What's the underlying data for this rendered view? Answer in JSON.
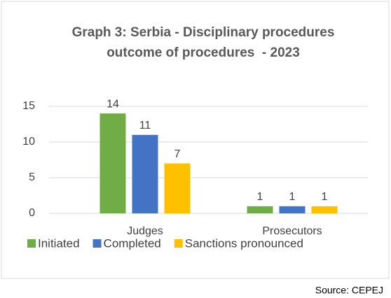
{
  "chart_data": {
    "type": "bar",
    "title": "Graph 3: Serbia - Disciplinary procedures outcome of procedures  - 2023",
    "categories": [
      "Judges",
      "Prosecutors"
    ],
    "series": [
      {
        "name": "Initiated",
        "color": "#70ad47",
        "values": [
          14,
          1
        ]
      },
      {
        "name": "Completed",
        "color": "#4472c4",
        "values": [
          11,
          1
        ]
      },
      {
        "name": "Sanctions pronounced",
        "color": "#ffc000",
        "values": [
          7,
          1
        ]
      }
    ],
    "ylim": [
      0,
      15
    ],
    "yticks": [
      0,
      5,
      10,
      15
    ],
    "grid": true,
    "legend": "bottom",
    "source": "Source: CEPEJ"
  }
}
